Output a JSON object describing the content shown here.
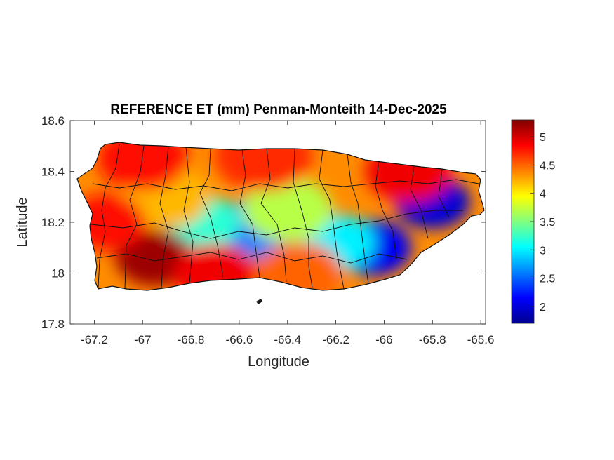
{
  "chart_data": {
    "type": "heatmap",
    "title": "REFERENCE ET (mm) Penman-Monteith 14-Dec-2025",
    "xlabel": "Longitude",
    "ylabel": "Latitude",
    "xlim": [
      -67.3,
      -65.58
    ],
    "ylim": [
      17.8,
      18.6
    ],
    "x_ticks": [
      -67.2,
      -67,
      -66.8,
      -66.6,
      -66.4,
      -66.2,
      -66,
      -65.8,
      -65.6
    ],
    "y_ticks": [
      17.8,
      18,
      18.2,
      18.4,
      18.6
    ],
    "x_tick_labels": [
      "-67.2",
      "-67",
      "-66.8",
      "-66.6",
      "-66.4",
      "-66.2",
      "-66",
      "-65.8",
      "-65.6"
    ],
    "y_tick_labels": [
      "17.8",
      "18",
      "18.2",
      "18.4",
      "18.6"
    ],
    "colorbar": {
      "colormap": "jet",
      "range": [
        1.7,
        5.3
      ],
      "ticks": [
        2,
        2.5,
        3,
        3.5,
        4,
        4.5,
        5
      ],
      "tick_labels": [
        "2",
        "2.5",
        "3",
        "3.5",
        "4",
        "4.5",
        "5"
      ]
    },
    "regional_values": [
      {
        "lon": -65.8,
        "lat": 18.28,
        "value": 2.0
      },
      {
        "lon": -66.05,
        "lat": 18.1,
        "value": 2.1
      },
      {
        "lon": -66.55,
        "lat": 18.17,
        "value": 2.6
      },
      {
        "lon": -66.2,
        "lat": 18.12,
        "value": 3.0
      },
      {
        "lon": -66.75,
        "lat": 18.2,
        "value": 3.2
      },
      {
        "lon": -66.4,
        "lat": 18.25,
        "value": 3.7
      },
      {
        "lon": -66.9,
        "lat": 18.3,
        "value": 4.2
      },
      {
        "lon": -67.0,
        "lat": 18.45,
        "value": 4.8
      },
      {
        "lon": -66.5,
        "lat": 18.46,
        "value": 4.7
      },
      {
        "lon": -65.9,
        "lat": 18.4,
        "value": 4.9
      },
      {
        "lon": -66.95,
        "lat": 18.06,
        "value": 5.2
      },
      {
        "lon": -66.7,
        "lat": 18.0,
        "value": 4.9
      },
      {
        "lon": -67.15,
        "lat": 18.2,
        "value": 4.8
      },
      {
        "lon": -66.35,
        "lat": 18.0,
        "value": 4.5
      }
    ]
  }
}
